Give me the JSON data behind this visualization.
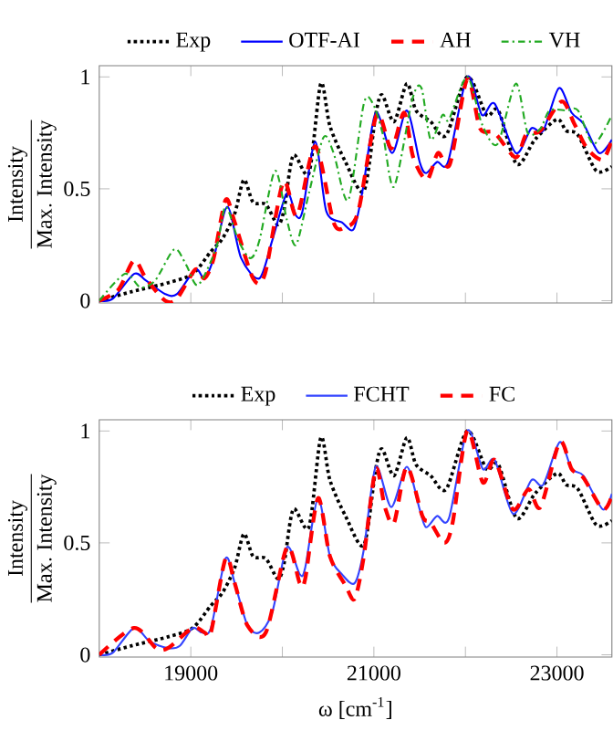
{
  "chart_data": [
    {
      "type": "line",
      "ylabel": "\\frac{\\mathrm{Intensity}}{\\mathrm{Max.\\ Intensity}}",
      "xlim": [
        18000,
        23600
      ],
      "ylim": [
        -0.01,
        1.05
      ],
      "xticks": [
        19000,
        20000,
        21000,
        22000,
        23000
      ],
      "yticks": [
        0,
        0.5,
        1
      ],
      "tick_labels": "y",
      "legend": "top",
      "series": [
        {
          "name": "Exp",
          "color": "#000000",
          "line_style": "dotted",
          "x": [
            18000,
            18350,
            18750,
            19020,
            19220,
            19350,
            19480,
            19580,
            19680,
            19820,
            19950,
            20020,
            20120,
            20290,
            20420,
            20520,
            20690,
            20890,
            21020,
            21090,
            21220,
            21360,
            21460,
            21620,
            21790,
            22020,
            22230,
            22360,
            22560,
            22760,
            23000,
            23100,
            23230,
            23430,
            23600
          ],
          "values": [
            0,
            0.04,
            0.08,
            0.12,
            0.22,
            0.28,
            0.39,
            0.54,
            0.44,
            0.43,
            0.34,
            0.41,
            0.65,
            0.57,
            0.97,
            0.78,
            0.62,
            0.49,
            0.83,
            0.92,
            0.8,
            0.97,
            0.85,
            0.8,
            0.74,
            1.0,
            0.83,
            0.85,
            0.61,
            0.72,
            0.81,
            0.76,
            0.74,
            0.58,
            0.6
          ]
        },
        {
          "name": "OTF-AI",
          "color": "#0000ff",
          "line_style": "solid",
          "x": [
            18000,
            18150,
            18380,
            18510,
            18720,
            18850,
            19050,
            19150,
            19250,
            19400,
            19550,
            19750,
            19890,
            20050,
            20150,
            20220,
            20360,
            20480,
            20650,
            20780,
            20880,
            21020,
            21200,
            21360,
            21500,
            21570,
            21690,
            21810,
            22020,
            22180,
            22320,
            22550,
            22720,
            22850,
            23020,
            23160,
            23290,
            23460,
            23600
          ],
          "values": [
            0,
            0.01,
            0.12,
            0.09,
            0.03,
            0.03,
            0.14,
            0.1,
            0.19,
            0.42,
            0.19,
            0.1,
            0.27,
            0.48,
            0.38,
            0.4,
            0.71,
            0.4,
            0.35,
            0.32,
            0.5,
            0.84,
            0.66,
            0.85,
            0.62,
            0.57,
            0.62,
            0.62,
            1.0,
            0.83,
            0.88,
            0.66,
            0.77,
            0.76,
            0.95,
            0.84,
            0.79,
            0.66,
            0.72
          ]
        },
        {
          "name": "AH",
          "color": "#ff0000",
          "line_style": "dashed",
          "x": [
            18000,
            18210,
            18380,
            18510,
            18720,
            18850,
            19050,
            19150,
            19250,
            19380,
            19480,
            19680,
            19810,
            20010,
            20160,
            20360,
            20560,
            20690,
            20830,
            21030,
            21190,
            21330,
            21430,
            21580,
            21700,
            21830,
            22020,
            22160,
            22320,
            22550,
            22660,
            22820,
            23050,
            23190,
            23330,
            23500,
            23600
          ],
          "values": [
            0,
            0.05,
            0.18,
            0.1,
            0.0,
            0.01,
            0.14,
            0.1,
            0.19,
            0.45,
            0.35,
            0.1,
            0.12,
            0.53,
            0.38,
            0.69,
            0.35,
            0.33,
            0.4,
            0.83,
            0.68,
            0.84,
            0.64,
            0.54,
            0.66,
            0.61,
            0.99,
            0.77,
            0.75,
            0.64,
            0.74,
            0.76,
            0.89,
            0.79,
            0.68,
            0.63,
            0.72
          ]
        },
        {
          "name": "VH",
          "color": "#22aa22",
          "line_style": "dashdot",
          "x": [
            18000,
            18280,
            18450,
            18610,
            18820,
            18950,
            19080,
            19280,
            19380,
            19520,
            19650,
            19750,
            19920,
            20050,
            20150,
            20290,
            20450,
            20560,
            20720,
            20890,
            20990,
            21100,
            21220,
            21420,
            21520,
            21620,
            21750,
            21820,
            22020,
            22180,
            22350,
            22550,
            22680,
            22820,
            22920,
            23100,
            23230,
            23400,
            23600
          ],
          "values": [
            0,
            0.12,
            0.06,
            0.09,
            0.23,
            0.16,
            0.07,
            0.24,
            0.42,
            0.27,
            0.19,
            0.27,
            0.58,
            0.36,
            0.25,
            0.48,
            0.73,
            0.66,
            0.45,
            0.88,
            0.88,
            0.74,
            0.51,
            0.9,
            0.95,
            0.72,
            0.83,
            0.81,
            1.0,
            0.79,
            0.7,
            0.97,
            0.75,
            0.77,
            0.85,
            0.85,
            0.85,
            0.7,
            0.83
          ]
        }
      ]
    },
    {
      "type": "line",
      "xlabel": "ω [cm$^{-1}$]",
      "ylabel": "\\frac{\\mathrm{Intensity}}{\\mathrm{Max.\\ Intensity}}",
      "xlim": [
        18000,
        23600
      ],
      "ylim": [
        -0.01,
        1.05
      ],
      "xticks": [
        19000,
        {
          "value": 20000,
          "label": null
        },
        21000,
        {
          "value": 22000,
          "label": null
        },
        23000
      ],
      "yticks": [
        0,
        0.5,
        1
      ],
      "legend": "top",
      "series": [
        {
          "name": "Exp",
          "color": "#000000",
          "line_style": "dotted",
          "x": [
            18000,
            18350,
            18750,
            19020,
            19220,
            19350,
            19480,
            19580,
            19680,
            19820,
            19950,
            20020,
            20120,
            20290,
            20420,
            20520,
            20690,
            20890,
            21020,
            21090,
            21220,
            21360,
            21460,
            21620,
            21790,
            22020,
            22230,
            22360,
            22560,
            22760,
            23000,
            23100,
            23230,
            23430,
            23600
          ],
          "values": [
            0,
            0.04,
            0.08,
            0.12,
            0.22,
            0.28,
            0.39,
            0.54,
            0.44,
            0.43,
            0.34,
            0.41,
            0.65,
            0.57,
            0.97,
            0.78,
            0.62,
            0.49,
            0.83,
            0.92,
            0.8,
            0.97,
            0.85,
            0.8,
            0.74,
            1.0,
            0.83,
            0.85,
            0.61,
            0.72,
            0.81,
            0.76,
            0.74,
            0.58,
            0.6
          ]
        },
        {
          "name": "FCHT",
          "color": "#3344ff",
          "line_style": "solid",
          "x": [
            18000,
            18150,
            18380,
            18550,
            18750,
            18880,
            19020,
            19120,
            19220,
            19380,
            19480,
            19620,
            19750,
            19890,
            20050,
            20190,
            20250,
            20390,
            20520,
            20650,
            20790,
            20890,
            21020,
            21190,
            21360,
            21500,
            21570,
            21690,
            21820,
            22020,
            22190,
            22320,
            22520,
            22720,
            22850,
            23030,
            23160,
            23290,
            23500,
            23600
          ],
          "values": [
            0,
            0.01,
            0.12,
            0.06,
            0.03,
            0.04,
            0.12,
            0.1,
            0.12,
            0.43,
            0.32,
            0.13,
            0.1,
            0.19,
            0.48,
            0.36,
            0.39,
            0.7,
            0.44,
            0.36,
            0.32,
            0.47,
            0.84,
            0.66,
            0.84,
            0.65,
            0.57,
            0.62,
            0.61,
            1.0,
            0.83,
            0.87,
            0.63,
            0.78,
            0.76,
            0.95,
            0.83,
            0.8,
            0.65,
            0.72
          ]
        },
        {
          "name": "FC",
          "color": "#ff0000",
          "line_style": "dashed",
          "x": [
            18000,
            18380,
            18620,
            18750,
            19020,
            19150,
            19220,
            19380,
            19480,
            19620,
            19820,
            20050,
            20190,
            20250,
            20390,
            20520,
            20690,
            20790,
            20890,
            21020,
            21120,
            21220,
            21360,
            21530,
            21620,
            21770,
            21860,
            22020,
            22190,
            22320,
            22520,
            22690,
            22820,
            23030,
            23160,
            23290,
            23500,
            23600
          ],
          "values": [
            0,
            0.12,
            0.03,
            0.03,
            0.12,
            0.1,
            0.1,
            0.43,
            0.32,
            0.13,
            0.1,
            0.48,
            0.32,
            0.34,
            0.7,
            0.44,
            0.31,
            0.25,
            0.44,
            0.83,
            0.66,
            0.59,
            0.84,
            0.62,
            0.59,
            0.5,
            0.59,
            1.0,
            0.77,
            0.87,
            0.65,
            0.74,
            0.66,
            0.95,
            0.83,
            0.79,
            0.65,
            0.71
          ]
        }
      ]
    }
  ]
}
